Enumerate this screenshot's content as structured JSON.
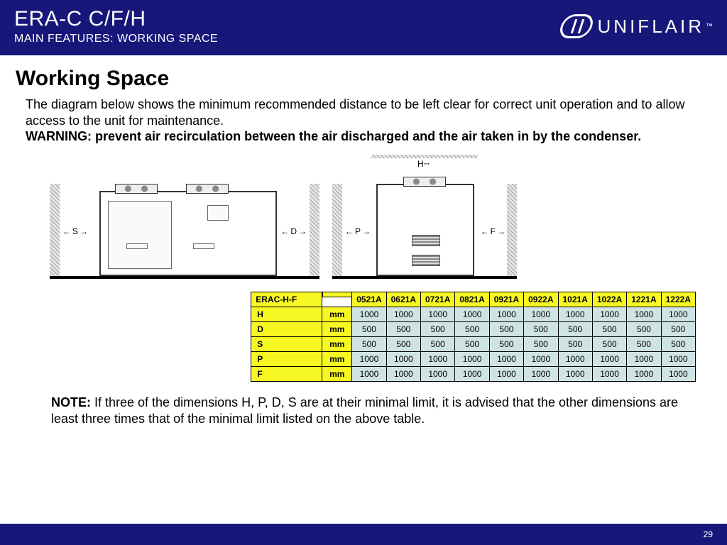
{
  "header": {
    "title1": "ERA-C C/F/H",
    "title2": "MAIN FEATURES: WORKING SPACE",
    "brand": "UNIFLAIR",
    "tm": "™"
  },
  "main": {
    "heading": "Working Space",
    "intro": "The diagram below shows the minimum recommended distance to be left clear for correct unit operation and to allow access to the unit for maintenance.",
    "warning": "WARNING: prevent air recirculation between the air discharged and the air taken in by the condenser.",
    "labels": {
      "S": "S",
      "D": "D",
      "P": "P",
      "F": "F",
      "H": "H"
    },
    "note_label": "NOTE:",
    "note_text": " If three of the dimensions H, P, D, S are at their minimal limit, it is advised that the other dimensions are least three times that of the minimal limit listed on the above table."
  },
  "table": {
    "header_name": "ERAC-H-F",
    "unit_header": "",
    "models": [
      "0521A",
      "0621A",
      "0721A",
      "0821A",
      "0921A",
      "0922A",
      "1021A",
      "1022A",
      "1221A",
      "1222A"
    ],
    "rows": [
      {
        "label": "H",
        "unit": "mm",
        "vals": [
          "1000",
          "1000",
          "1000",
          "1000",
          "1000",
          "1000",
          "1000",
          "1000",
          "1000",
          "1000"
        ]
      },
      {
        "label": "D",
        "unit": "mm",
        "vals": [
          "500",
          "500",
          "500",
          "500",
          "500",
          "500",
          "500",
          "500",
          "500",
          "500"
        ]
      },
      {
        "label": "S",
        "unit": "mm",
        "vals": [
          "500",
          "500",
          "500",
          "500",
          "500",
          "500",
          "500",
          "500",
          "500",
          "500"
        ]
      },
      {
        "label": "P",
        "unit": "mm",
        "vals": [
          "1000",
          "1000",
          "1000",
          "1000",
          "1000",
          "1000",
          "1000",
          "1000",
          "1000",
          "1000"
        ]
      },
      {
        "label": "F",
        "unit": "mm",
        "vals": [
          "1000",
          "1000",
          "1000",
          "1000",
          "1000",
          "1000",
          "1000",
          "1000",
          "1000",
          "1000"
        ]
      }
    ],
    "styles": {
      "header_bg": "#f7f723",
      "cell_bg": "#cfe3e3",
      "border": "#000000"
    }
  },
  "footer": {
    "page": "29"
  }
}
